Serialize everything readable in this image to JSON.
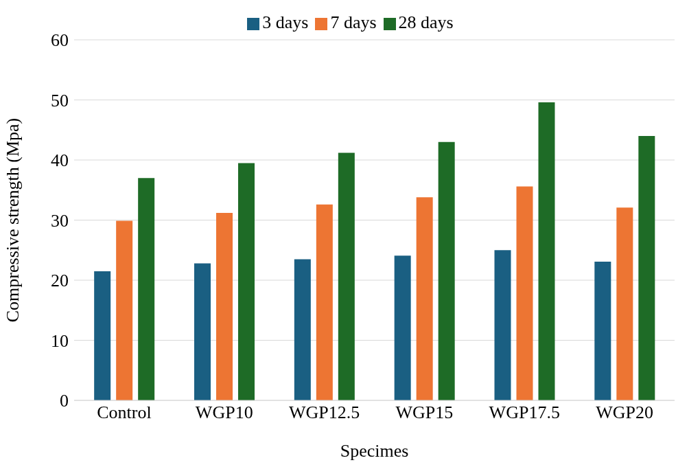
{
  "chart_data": {
    "type": "bar",
    "xlabel": "Specimes",
    "ylabel": "Compressive strength (Mpa)",
    "categories": [
      "Control",
      "WGP10",
      "WGP12.5",
      "WGP15",
      "WGP17.5",
      "WGP20"
    ],
    "series": [
      {
        "name": "3 days",
        "color": "#1a5f82",
        "values": [
          21.5,
          22.8,
          23.5,
          24.1,
          25.0,
          23.1
        ]
      },
      {
        "name": "7 days",
        "color": "#ed7533",
        "values": [
          29.9,
          31.2,
          32.6,
          33.8,
          35.6,
          32.1
        ]
      },
      {
        "name": "28 days",
        "color": "#1e6b26",
        "values": [
          37.0,
          39.5,
          41.2,
          43.0,
          49.6,
          44.0
        ]
      }
    ],
    "ylim": [
      0,
      60
    ],
    "yticks": [
      0,
      10,
      20,
      30,
      40,
      50,
      60
    ],
    "grid": "y",
    "legend": "top"
  }
}
